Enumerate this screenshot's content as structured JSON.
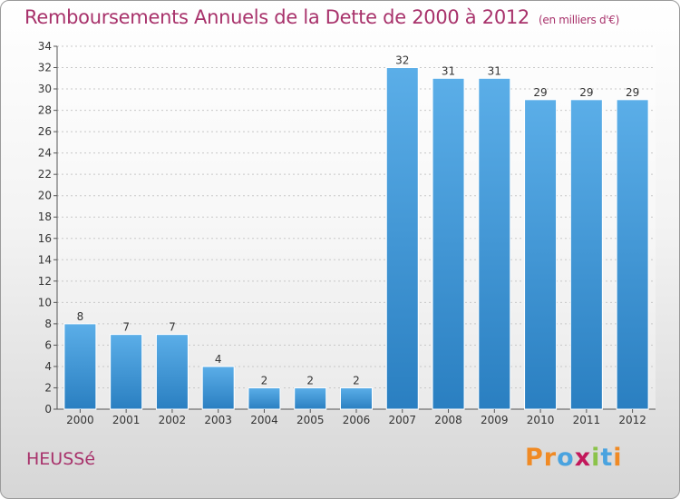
{
  "header": {
    "title": "Remboursements Annuels de la Dette de 2000 à 2012",
    "subtitle": "(en milliers d'€)"
  },
  "footer": {
    "town": "HEUSSé",
    "logo_text": "Proxiti",
    "logo_colors": [
      "#f08a24",
      "#f08a24",
      "#4aa3df",
      "#c2185b",
      "#8bc34a",
      "#4aa3df",
      "#f08a24"
    ]
  },
  "colors": {
    "bar_top": "#5baee8",
    "bar_bottom": "#2a7fc1",
    "text": "#333333",
    "accent": "#a8326b"
  },
  "chart_data": {
    "type": "bar",
    "categories": [
      "2000",
      "2001",
      "2002",
      "2003",
      "2004",
      "2005",
      "2006",
      "2007",
      "2008",
      "2009",
      "2010",
      "2011",
      "2012"
    ],
    "values": [
      8,
      7,
      7,
      4,
      2,
      2,
      2,
      32,
      31,
      31,
      29,
      29,
      29
    ],
    "title": "Remboursements Annuels de la Dette de 2000 à 2012",
    "subtitle": "(en milliers d'€)",
    "ylim": [
      0,
      34
    ],
    "ytick_step": 2,
    "grid": true,
    "data_labels": true
  }
}
